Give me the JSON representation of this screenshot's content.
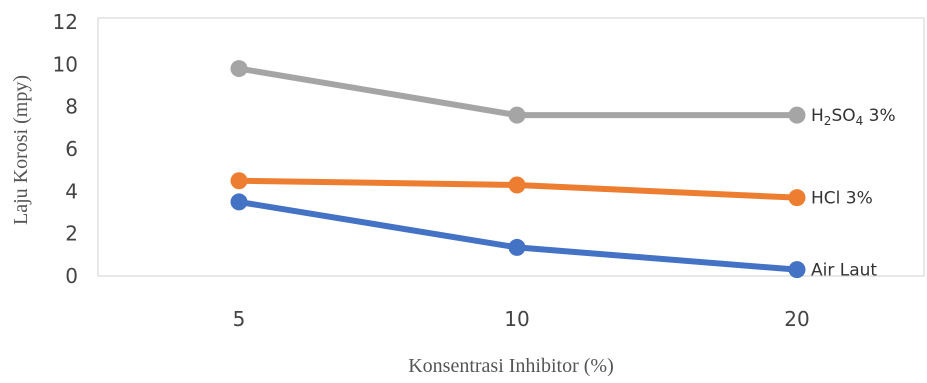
{
  "chart_data": {
    "type": "line",
    "categories": [
      "5",
      "10",
      "20"
    ],
    "series": [
      {
        "name": "H2SO4 3%",
        "color": "#a5a5a5",
        "values": [
          9.8,
          7.6,
          7.6
        ]
      },
      {
        "name": "HCl 3%",
        "color": "#ed7d31",
        "values": [
          4.5,
          4.3,
          3.7
        ]
      },
      {
        "name": "Air Laut",
        "color": "#4472c4",
        "values": [
          3.5,
          1.35,
          0.3
        ]
      }
    ],
    "ylabel": "Laju Korosi (mpy)",
    "xlabel": "Konsentrasi Inhibitor (%)",
    "ylim": [
      0,
      12
    ],
    "yticks": [
      "0",
      "2",
      "4",
      "6",
      "8",
      "10",
      "12"
    ],
    "grid": false,
    "legend": "inline labels at line ends"
  }
}
